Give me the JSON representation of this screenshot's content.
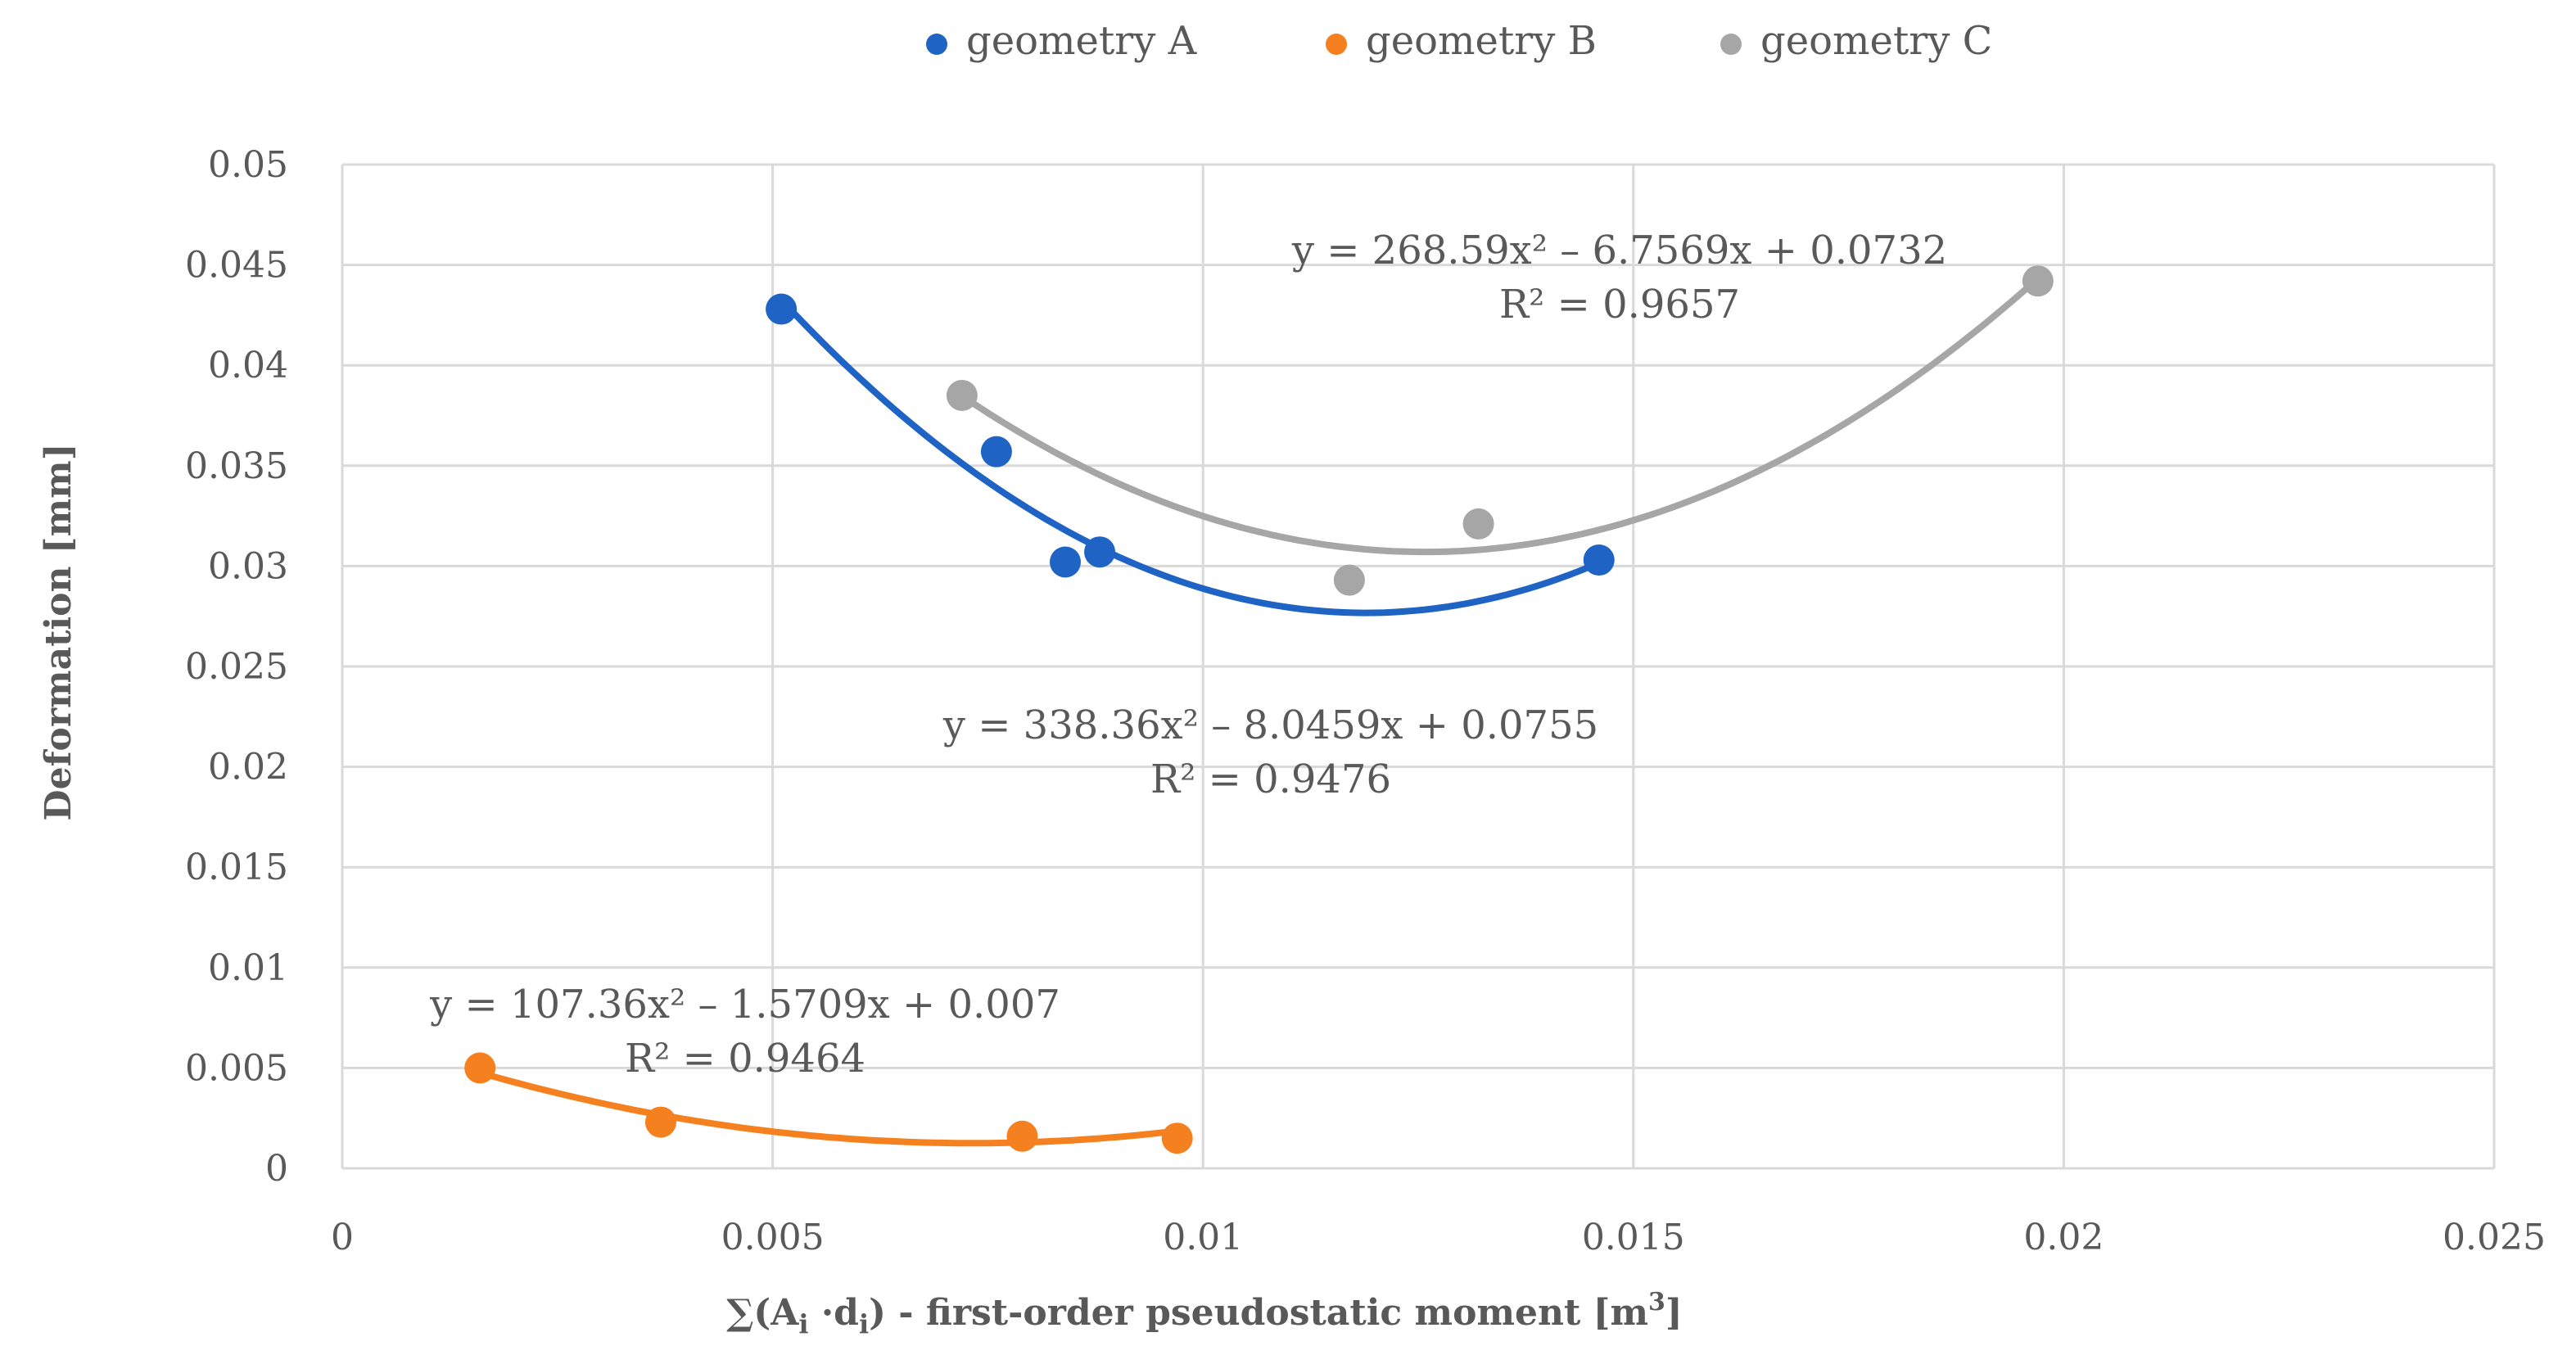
{
  "chart_data": {
    "type": "scatter",
    "xlabel_parts": [
      "∑(A",
      "i",
      " ·d",
      "i",
      ") - first-order pseudostatic moment [m",
      "3",
      "]"
    ],
    "ylabel": "Deformation [mm]",
    "xlim": [
      0,
      0.025
    ],
    "ylim": [
      0,
      0.05
    ],
    "x_ticks": [
      0,
      0.005,
      0.01,
      0.015,
      0.02,
      0.025
    ],
    "x_tick_labels": [
      "0",
      "0.005",
      "0.01",
      "0.015",
      "0.02",
      "0.025"
    ],
    "y_ticks": [
      0,
      0.005,
      0.01,
      0.015,
      0.02,
      0.025,
      0.03,
      0.035,
      0.04,
      0.045,
      0.05
    ],
    "y_tick_labels": [
      "0",
      "0.005",
      "0.01",
      "0.015",
      "0.02",
      "0.025",
      "0.03",
      "0.035",
      "0.04",
      "0.045",
      "0.05"
    ],
    "grid": true,
    "legend_position": "top",
    "series": [
      {
        "name": "geometry A",
        "color": "#1f63c4",
        "points": [
          [
            0.0051,
            0.0428
          ],
          [
            0.0076,
            0.0357
          ],
          [
            0.0084,
            0.0302
          ],
          [
            0.0088,
            0.0307
          ],
          [
            0.0146,
            0.0303
          ]
        ],
        "trend": {
          "a": 338.36,
          "b": -8.0459,
          "c": 0.0755,
          "x_range": [
            0.0051,
            0.0146
          ]
        },
        "equation": "y = 338.36x² – 8.0459x + 0.0755",
        "r2": "R² = 0.9476"
      },
      {
        "name": "geometry B",
        "color": "#f5801f",
        "points": [
          [
            0.0016,
            0.005
          ],
          [
            0.0037,
            0.0023
          ],
          [
            0.0079,
            0.0016
          ],
          [
            0.0097,
            0.0015
          ]
        ],
        "trend": {
          "a": 107.36,
          "b": -1.5709,
          "c": 0.007,
          "x_range": [
            0.0016,
            0.0097
          ]
        },
        "equation": "y = 107.36x² – 1.5709x + 0.007",
        "r2": "R² = 0.9464"
      },
      {
        "name": "geometry C",
        "color": "#a6a6a6",
        "points": [
          [
            0.0072,
            0.0385
          ],
          [
            0.0117,
            0.0293
          ],
          [
            0.0132,
            0.0321
          ],
          [
            0.0197,
            0.0442
          ]
        ],
        "trend": {
          "a": 268.59,
          "b": -6.7569,
          "c": 0.0732,
          "x_range": [
            0.0072,
            0.0197
          ]
        },
        "equation": "y = 268.59x² – 6.7569x + 0.0732",
        "r2": "R² = 0.9657"
      }
    ]
  }
}
